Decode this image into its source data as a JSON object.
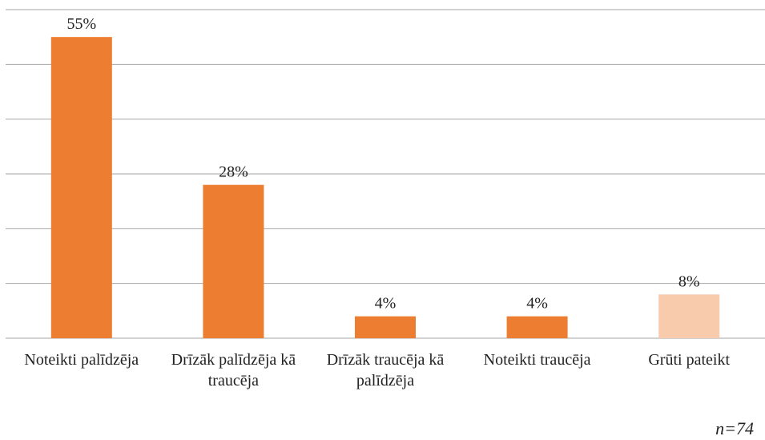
{
  "chart_data": {
    "type": "bar",
    "categories": [
      "Noteikti palīdzēja",
      "Drīzāk palīdzēja kā traucēja",
      "Drīzāk traucēja kā palīdzēja",
      "Noteikti traucēja",
      "Grūti pateikt"
    ],
    "values": [
      55,
      28,
      4,
      4,
      8
    ],
    "value_labels": [
      "55%",
      "28%",
      "4%",
      "4%",
      "8%"
    ],
    "colors": [
      "#ed7d31",
      "#ed7d31",
      "#ed7d31",
      "#ed7d31",
      "#f8cbad"
    ],
    "ylim": [
      0,
      60
    ],
    "yticks": [
      0,
      10,
      20,
      30,
      40,
      50,
      60
    ],
    "grid": true,
    "annotation": "n=74"
  }
}
